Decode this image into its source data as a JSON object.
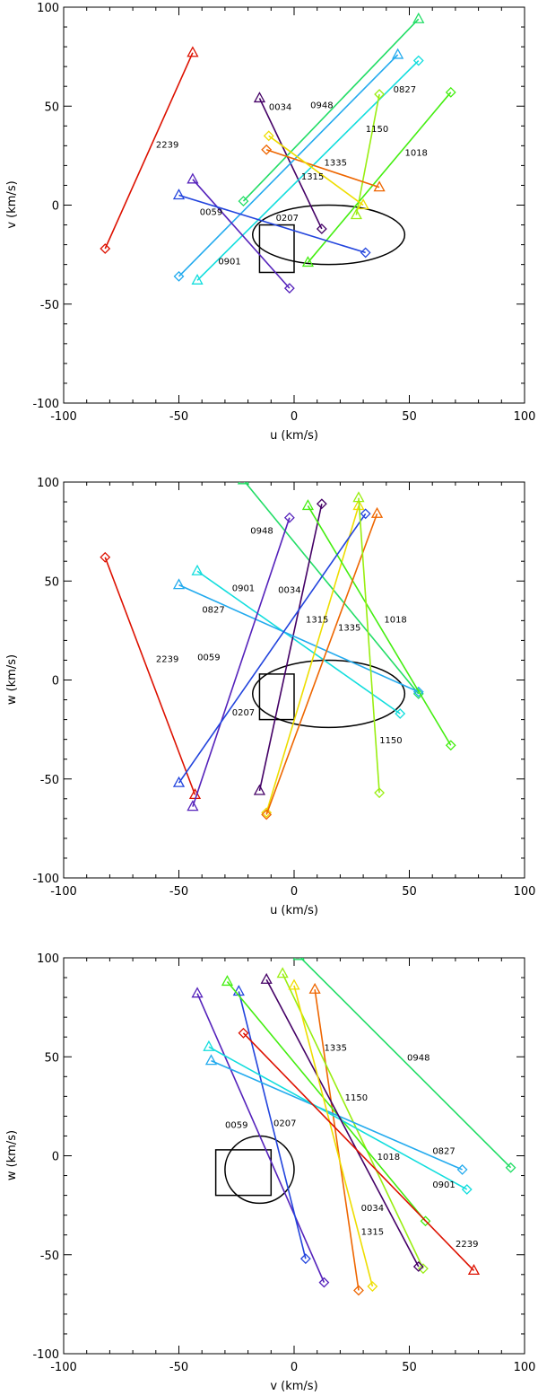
{
  "figure": {
    "background": "#ffffff",
    "axis_color": "#000000"
  },
  "chart_data": [
    {
      "type": "line",
      "panel": "u-v",
      "xlabel": "u (km/s)",
      "ylabel": "v (km/s)",
      "xlim": [
        -100,
        100
      ],
      "ylim": [
        -100,
        100
      ],
      "xticks": [
        -100,
        -50,
        0,
        50,
        100
      ],
      "yticks": [
        -100,
        -50,
        0,
        50,
        100
      ],
      "grid": false,
      "ellipse": {
        "cx": 15,
        "cy": -15,
        "rx": 33,
        "ry": 15
      },
      "rectangle": {
        "x0": -15,
        "x1": 0,
        "y0": -34,
        "y1": -10
      },
      "series": [
        {
          "name": "2239",
          "color": "#dd1100",
          "start": [
            -44,
            77
          ],
          "end": [
            -82,
            -22
          ],
          "label_at": [
            -55,
            29
          ]
        },
        {
          "name": "0034",
          "color": "#440066",
          "start": [
            -15,
            54
          ],
          "end": [
            12,
            -12
          ],
          "label_at": [
            -6,
            48
          ]
        },
        {
          "name": "0948",
          "color": "#22dd66",
          "start": [
            54,
            94
          ],
          "end": [
            -22,
            2
          ],
          "label_at": [
            12,
            49
          ]
        },
        {
          "name": "0827",
          "color": "#22aaee",
          "start": [
            45,
            76
          ],
          "end": [
            -50,
            -36
          ],
          "label_at": [
            48,
            57
          ]
        },
        {
          "name": "0901",
          "color": "#11dddd",
          "start": [
            -42,
            -38
          ],
          "end": [
            54,
            73
          ],
          "label_at": [
            -28,
            -30
          ]
        },
        {
          "name": "1150",
          "color": "#99ee11",
          "start": [
            27,
            -5
          ],
          "end": [
            37,
            56
          ],
          "label_at": [
            36,
            37
          ]
        },
        {
          "name": "1018",
          "color": "#44ee11",
          "start": [
            6,
            -29
          ],
          "end": [
            68,
            57
          ],
          "label_at": [
            53,
            25
          ]
        },
        {
          "name": "1335",
          "color": "#ee6600",
          "start": [
            37,
            9
          ],
          "end": [
            -12,
            28
          ],
          "label_at": [
            18,
            20
          ]
        },
        {
          "name": "1315",
          "color": "#eedd00",
          "start": [
            30,
            0
          ],
          "end": [
            -11,
            35
          ],
          "label_at": [
            8,
            13
          ]
        },
        {
          "name": "0059",
          "color": "#5522bb",
          "start": [
            -44,
            13
          ],
          "end": [
            -2,
            -42
          ],
          "label_at": [
            -36,
            -5
          ]
        },
        {
          "name": "0207",
          "color": "#2244dd",
          "start": [
            -50,
            5
          ],
          "end": [
            31,
            -24
          ],
          "label_at": [
            -3,
            -8
          ]
        }
      ]
    },
    {
      "type": "line",
      "panel": "u-w",
      "xlabel": "u (km/s)",
      "ylabel": "w (km/s)",
      "xlim": [
        -100,
        100
      ],
      "ylim": [
        -100,
        100
      ],
      "xticks": [
        -100,
        -50,
        0,
        50,
        100
      ],
      "yticks": [
        -100,
        -50,
        0,
        50,
        100
      ],
      "grid": false,
      "ellipse": {
        "cx": 15,
        "cy": -7,
        "rx": 33,
        "ry": 17
      },
      "rectangle": {
        "x0": -15,
        "x1": 0,
        "y0": -20,
        "y1": 3
      },
      "series": [
        {
          "name": "2239",
          "color": "#dd1100",
          "start": [
            -43,
            -58
          ],
          "end": [
            -82,
            62
          ],
          "label_at": [
            -55,
            9
          ]
        },
        {
          "name": "0948",
          "color": "#22dd66",
          "start": [
            -22,
            101
          ],
          "end": [
            54,
            -7
          ],
          "label_at": [
            -14,
            74
          ]
        },
        {
          "name": "0901",
          "color": "#11dddd",
          "start": [
            -42,
            55
          ],
          "end": [
            46,
            -17
          ],
          "label_at": [
            -22,
            45
          ]
        },
        {
          "name": "0034",
          "color": "#440066",
          "start": [
            -15,
            -56
          ],
          "end": [
            12,
            89
          ],
          "label_at": [
            -2,
            44
          ]
        },
        {
          "name": "0827",
          "color": "#22aaee",
          "start": [
            -50,
            48
          ],
          "end": [
            54,
            -6
          ],
          "label_at": [
            -35,
            34
          ]
        },
        {
          "name": "1315",
          "color": "#eedd00",
          "start": [
            28,
            88
          ],
          "end": [
            -12,
            -67
          ],
          "label_at": [
            10,
            29
          ]
        },
        {
          "name": "1018",
          "color": "#44ee11",
          "start": [
            6,
            88
          ],
          "end": [
            68,
            -33
          ],
          "label_at": [
            44,
            29
          ]
        },
        {
          "name": "1335",
          "color": "#ee6600",
          "start": [
            36,
            84
          ],
          "end": [
            -12,
            -68
          ],
          "label_at": [
            24,
            25
          ]
        },
        {
          "name": "0059",
          "color": "#5522bb",
          "start": [
            -44,
            -64
          ],
          "end": [
            -2,
            82
          ],
          "label_at": [
            -37,
            10
          ]
        },
        {
          "name": "0207",
          "color": "#2244dd",
          "start": [
            -50,
            -52
          ],
          "end": [
            31,
            84
          ],
          "label_at": [
            -22,
            -18
          ]
        },
        {
          "name": "1150",
          "color": "#99ee11",
          "start": [
            28,
            92
          ],
          "end": [
            37,
            -57
          ],
          "label_at": [
            42,
            -32
          ]
        }
      ]
    },
    {
      "type": "line",
      "panel": "v-w",
      "xlabel": "v (km/s)",
      "ylabel": "w (km/s)",
      "xlim": [
        -100,
        100
      ],
      "ylim": [
        -100,
        100
      ],
      "xticks": [
        -100,
        -50,
        0,
        50,
        100
      ],
      "yticks": [
        -100,
        -50,
        0,
        50,
        100
      ],
      "grid": false,
      "ellipse": {
        "cx": -15,
        "cy": -7,
        "rx": 15,
        "ry": 17
      },
      "rectangle": {
        "x0": -34,
        "x1": -10,
        "y0": -20,
        "y1": 3
      },
      "series": [
        {
          "name": "1335",
          "color": "#ee6600",
          "start": [
            9,
            84
          ],
          "end": [
            28,
            -68
          ],
          "label_at": [
            18,
            53
          ]
        },
        {
          "name": "0948",
          "color": "#22dd66",
          "start": [
            2,
            101
          ],
          "end": [
            94,
            -6
          ],
          "label_at": [
            54,
            48
          ]
        },
        {
          "name": "1150",
          "color": "#99ee11",
          "start": [
            -5,
            92
          ],
          "end": [
            56,
            -57
          ],
          "label_at": [
            27,
            28
          ]
        },
        {
          "name": "0059",
          "color": "#5522bb",
          "start": [
            -42,
            82
          ],
          "end": [
            13,
            -64
          ],
          "label_at": [
            -25,
            14
          ]
        },
        {
          "name": "0207",
          "color": "#2244dd",
          "start": [
            -24,
            83
          ],
          "end": [
            5,
            -52
          ],
          "label_at": [
            -4,
            15
          ]
        },
        {
          "name": "1018",
          "color": "#44ee11",
          "start": [
            -29,
            88
          ],
          "end": [
            57,
            -33
          ],
          "label_at": [
            41,
            -2
          ]
        },
        {
          "name": "0827",
          "color": "#22aaee",
          "start": [
            -36,
            48
          ],
          "end": [
            73,
            -7
          ],
          "label_at": [
            65,
            1
          ]
        },
        {
          "name": "0901",
          "color": "#11dddd",
          "start": [
            -37,
            55
          ],
          "end": [
            75,
            -17
          ],
          "label_at": [
            65,
            -16
          ]
        },
        {
          "name": "0034",
          "color": "#440066",
          "start": [
            -12,
            89
          ],
          "end": [
            54,
            -56
          ],
          "label_at": [
            34,
            -28
          ]
        },
        {
          "name": "1315",
          "color": "#eedd00",
          "start": [
            0,
            86
          ],
          "end": [
            34,
            -66
          ],
          "label_at": [
            34,
            -40
          ]
        },
        {
          "name": "2239",
          "color": "#dd1100",
          "start": [
            78,
            -58
          ],
          "end": [
            -22,
            62
          ],
          "label_at": [
            75,
            -46
          ]
        }
      ]
    }
  ]
}
